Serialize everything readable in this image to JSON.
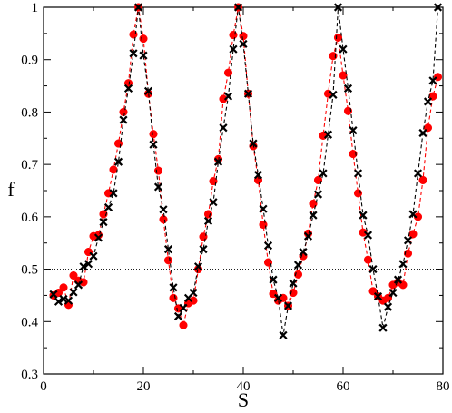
{
  "chart_data": {
    "type": "scatter",
    "xlabel": "S",
    "ylabel": "f",
    "xlim": [
      0,
      80
    ],
    "ylim": [
      0.3,
      1.0
    ],
    "x_ticks": [
      0,
      20,
      40,
      60,
      80
    ],
    "x_tick_labels": [
      "0",
      "20",
      "40",
      "60",
      "80"
    ],
    "y_ticks": [
      0.3,
      0.4,
      0.5,
      0.6,
      0.7,
      0.8,
      0.9,
      1.0
    ],
    "y_tick_labels": [
      "0.3",
      "0.4",
      "0.5",
      "0.6",
      "0.7",
      "0.8",
      "0.9",
      "1"
    ],
    "reference_line": {
      "y": 0.5,
      "style": "dotted",
      "color": "#000000"
    },
    "grid": false,
    "series": [
      {
        "marker": "circle",
        "color": "#ff0000",
        "line": "dashed",
        "x": [
          2,
          3,
          4,
          5,
          6,
          7,
          8,
          9,
          10,
          11,
          12,
          13,
          14,
          15,
          16,
          17,
          18,
          19,
          20,
          21,
          22,
          23,
          24,
          25,
          26,
          27,
          28,
          29,
          30,
          31,
          32,
          33,
          34,
          35,
          36,
          37,
          38,
          39,
          40,
          41,
          42,
          43,
          44,
          45,
          46,
          47,
          48,
          49,
          50,
          51,
          52,
          53,
          54,
          55,
          56,
          57,
          58,
          59,
          60,
          61,
          62,
          63,
          64,
          65,
          66,
          67,
          68,
          69,
          70,
          71,
          72,
          73,
          74,
          75,
          76,
          77,
          78,
          79
        ],
        "y": [
          0.45,
          0.455,
          0.465,
          0.432,
          0.488,
          0.478,
          0.475,
          0.533,
          0.563,
          0.565,
          0.605,
          0.645,
          0.69,
          0.74,
          0.8,
          0.855,
          0.948,
          1.0,
          0.94,
          0.835,
          0.758,
          0.688,
          0.595,
          0.517,
          0.445,
          0.425,
          0.393,
          0.435,
          0.44,
          0.5,
          0.562,
          0.605,
          0.668,
          0.71,
          0.825,
          0.875,
          0.947,
          1.0,
          0.945,
          0.835,
          0.735,
          0.67,
          0.585,
          0.513,
          0.453,
          0.44,
          0.445,
          0.43,
          0.455,
          0.49,
          0.525,
          0.568,
          0.625,
          0.67,
          0.755,
          0.835,
          0.907,
          0.942,
          0.87,
          0.802,
          0.72,
          0.645,
          0.57,
          0.518,
          0.458,
          0.448,
          0.44,
          0.445,
          0.47,
          0.475,
          0.47,
          0.53,
          0.567,
          0.6,
          0.67,
          0.77,
          0.83,
          0.867
        ]
      },
      {
        "marker": "x",
        "color": "#000000",
        "line": "dashed",
        "x": [
          2,
          3,
          4,
          5,
          6,
          7,
          8,
          9,
          10,
          11,
          12,
          13,
          14,
          15,
          16,
          17,
          18,
          19,
          20,
          21,
          22,
          23,
          24,
          25,
          26,
          27,
          28,
          29,
          30,
          31,
          32,
          33,
          34,
          35,
          36,
          37,
          38,
          39,
          40,
          41,
          42,
          43,
          44,
          45,
          46,
          47,
          48,
          49,
          50,
          51,
          52,
          53,
          54,
          55,
          56,
          57,
          58,
          59,
          60,
          61,
          62,
          63,
          64,
          65,
          66,
          67,
          68,
          69,
          70,
          71,
          72,
          73,
          74,
          75,
          76,
          77,
          78,
          79
        ],
        "y": [
          0.452,
          0.438,
          0.443,
          0.44,
          0.456,
          0.47,
          0.505,
          0.51,
          0.525,
          0.56,
          0.59,
          0.618,
          0.645,
          0.705,
          0.785,
          0.845,
          0.912,
          1.0,
          0.908,
          0.84,
          0.738,
          0.657,
          0.614,
          0.538,
          0.465,
          0.41,
          0.426,
          0.445,
          0.455,
          0.505,
          0.538,
          0.592,
          0.628,
          0.705,
          0.77,
          0.83,
          0.92,
          1.0,
          0.93,
          0.835,
          0.74,
          0.68,
          0.615,
          0.545,
          0.48,
          0.445,
          0.374,
          0.43,
          0.473,
          0.508,
          0.533,
          0.563,
          0.603,
          0.643,
          0.683,
          0.757,
          0.833,
          1.0,
          0.92,
          0.845,
          0.765,
          0.683,
          0.603,
          0.565,
          0.5,
          0.448,
          0.388,
          0.428,
          0.455,
          0.48,
          0.51,
          0.555,
          0.605,
          0.683,
          0.76,
          0.82,
          0.86,
          1.0
        ]
      }
    ]
  }
}
